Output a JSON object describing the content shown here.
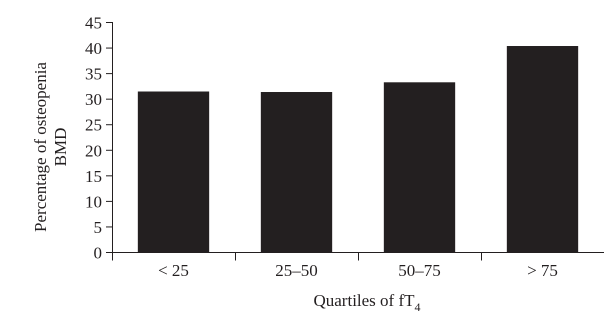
{
  "chart_data": {
    "type": "bar",
    "title": "",
    "xlabel": "Quartiles of fT",
    "xlabel_subscript": "4",
    "ylabel_lines": [
      "Percentage of osteopenia",
      "BMD"
    ],
    "categories": [
      "< 25",
      "25–50",
      "50–75",
      "> 75"
    ],
    "values": [
      31.5,
      31.4,
      33.3,
      40.4
    ],
    "ylim": [
      0,
      45
    ],
    "yticks": [
      "0",
      "5",
      "10",
      "15",
      "20",
      "25",
      "30",
      "35",
      "40",
      "45"
    ],
    "grid": false,
    "legend": "none",
    "bar_color": "#231f20"
  }
}
